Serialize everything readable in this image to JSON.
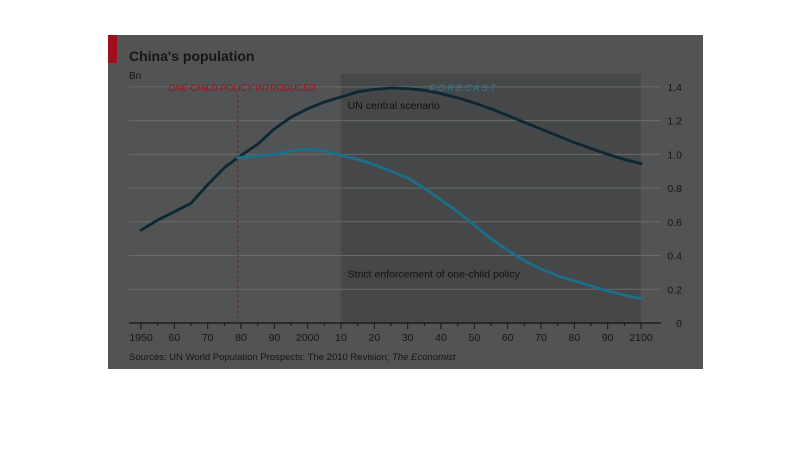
{
  "chart_data": {
    "type": "line",
    "title": "China's population",
    "unit_label": "Bn",
    "source_prefix": "Sources: UN World Population Prospects: The 2010 Revision; ",
    "source_italic": "The Economist",
    "x_tick_labels": [
      {
        "x": 1950,
        "label": "1950"
      },
      {
        "x": 1960,
        "label": "60"
      },
      {
        "x": 1970,
        "label": "70"
      },
      {
        "x": 1980,
        "label": "80"
      },
      {
        "x": 1990,
        "label": "90"
      },
      {
        "x": 2000,
        "label": "2000"
      },
      {
        "x": 2010,
        "label": "10"
      },
      {
        "x": 2020,
        "label": "20"
      },
      {
        "x": 2030,
        "label": "30"
      },
      {
        "x": 2040,
        "label": "40"
      },
      {
        "x": 2050,
        "label": "50"
      },
      {
        "x": 2060,
        "label": "60"
      },
      {
        "x": 2070,
        "label": "70"
      },
      {
        "x": 2080,
        "label": "80"
      },
      {
        "x": 2090,
        "label": "90"
      },
      {
        "x": 2100,
        "label": "2100"
      }
    ],
    "y_ticks": [
      {
        "value": 0,
        "label": "0"
      },
      {
        "value": 0.2,
        "label": "0.2"
      },
      {
        "value": 0.4,
        "label": "0.4"
      },
      {
        "value": 0.6,
        "label": "0.6"
      },
      {
        "value": 0.8,
        "label": "0.8"
      },
      {
        "value": 1.0,
        "label": "1.0"
      },
      {
        "value": 1.2,
        "label": "1.2"
      },
      {
        "value": 1.4,
        "label": "1.4"
      }
    ],
    "xlim": [
      1950,
      2100
    ],
    "ylim": [
      0,
      1.5
    ],
    "y_axis_side": "right",
    "grid": true,
    "forecast_region": {
      "start": 2010,
      "end": 2100,
      "label": "F O R E C A S T"
    },
    "policy_marker": {
      "x": 1979,
      "label": "ONE-CHILD POLICY INTRODUCED"
    },
    "series": [
      {
        "name": "UN central scenario",
        "color": "#0d2733",
        "x": [
          1950,
          1955,
          1960,
          1965,
          1970,
          1975,
          1979,
          1985,
          1990,
          1995,
          2000,
          2005,
          2010,
          2015,
          2020,
          2025,
          2030,
          2035,
          2040,
          2045,
          2050,
          2055,
          2060,
          2065,
          2070,
          2075,
          2080,
          2085,
          2090,
          2095,
          2100
        ],
        "y": [
          0.55,
          0.61,
          0.66,
          0.71,
          0.82,
          0.92,
          0.98,
          1.06,
          1.15,
          1.22,
          1.27,
          1.31,
          1.34,
          1.37,
          1.385,
          1.393,
          1.39,
          1.38,
          1.36,
          1.335,
          1.305,
          1.27,
          1.23,
          1.19,
          1.15,
          1.11,
          1.07,
          1.035,
          1.0,
          0.97,
          0.945
        ]
      },
      {
        "name": "Strict enforcement of one-child policy",
        "color": "#1c6f8a",
        "x": [
          1979,
          1985,
          1990,
          1995,
          2000,
          2005,
          2010,
          2015,
          2020,
          2025,
          2030,
          2035,
          2040,
          2045,
          2050,
          2055,
          2060,
          2065,
          2070,
          2075,
          2080,
          2085,
          2090,
          2095,
          2100
        ],
        "y": [
          0.98,
          0.99,
          1.0,
          1.02,
          1.03,
          1.02,
          0.995,
          0.97,
          0.94,
          0.9,
          0.86,
          0.8,
          0.73,
          0.66,
          0.58,
          0.5,
          0.43,
          0.37,
          0.32,
          0.28,
          0.25,
          0.22,
          0.19,
          0.165,
          0.145
        ]
      }
    ],
    "annotations": [
      {
        "text": "UN central scenario",
        "x": 2012,
        "y": 1.27,
        "color": "#111111"
      },
      {
        "text": "Strict enforcement of one-child policy",
        "x": 2012,
        "y": 0.27,
        "color": "#111111"
      }
    ]
  },
  "colors": {
    "background": "#515354",
    "forecast_band": "#454748",
    "accent": "#a10e1b",
    "policy_line": "#a10e1b",
    "forecast_label": "#2a7e9c",
    "grid": "#696b6c",
    "text": "#151515"
  }
}
